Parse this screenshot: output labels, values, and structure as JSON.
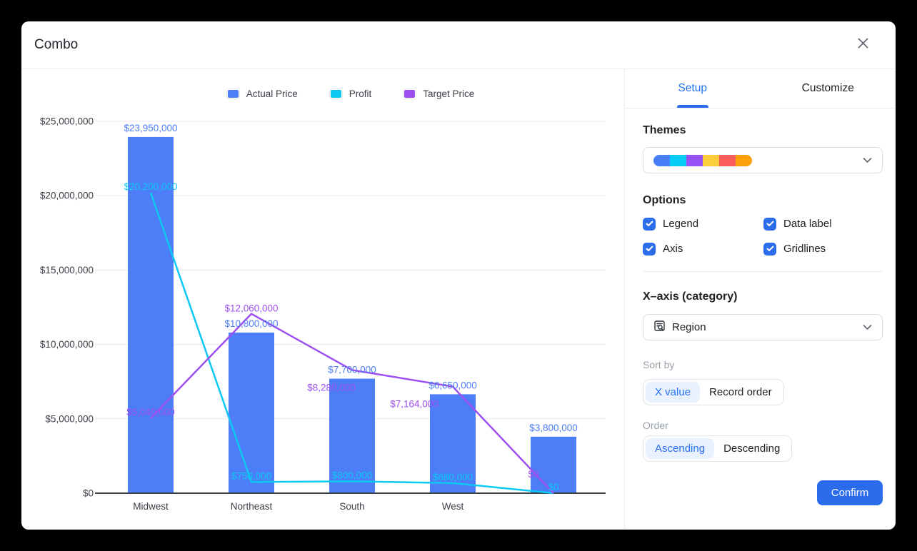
{
  "dialog": {
    "title": "Combo"
  },
  "icons": {
    "close": "x-icon",
    "chevron": "chevron-down-icon",
    "region_field": "field-search-icon"
  },
  "chart_data": {
    "type": "combo",
    "categories": [
      "Midwest",
      "Northeast",
      "South",
      "West",
      ""
    ],
    "series": [
      {
        "name": "Actual Price",
        "type": "bar",
        "color": "#4d7ef7",
        "values": [
          23950000,
          10800000,
          7700000,
          6650000,
          3800000
        ],
        "labels": [
          "$23,950,000",
          "$10,800,000",
          "$7,700,000",
          "$6,650,000",
          "$3,800,000"
        ]
      },
      {
        "name": "Profit",
        "type": "line",
        "color": "#0cc8f2",
        "values": [
          20200000,
          750000,
          800000,
          680000,
          0
        ],
        "labels": [
          "$20,200,000",
          "$750,000",
          "$800,000",
          "$680,000",
          "$0"
        ]
      },
      {
        "name": "Target Price",
        "type": "line",
        "color": "#9d4ff2",
        "values": [
          5040000,
          12060000,
          8280000,
          7164000,
          0
        ],
        "labels": [
          "$5,040,000",
          "$12,060,000",
          "$8,280,000",
          "$7,164,000",
          "$0"
        ]
      }
    ],
    "yticks": [
      0,
      5000000,
      10000000,
      15000000,
      20000000,
      25000000
    ],
    "ytick_labels": [
      "$0",
      "$5,000,000",
      "$10,000,000",
      "$15,000,000",
      "$20,000,000",
      "$25,000,000"
    ],
    "ylim": [
      0,
      25000000
    ],
    "legend_position": "top",
    "gridlines": true,
    "data_labels": true
  },
  "panel": {
    "tabs": [
      {
        "label": "Setup",
        "active": true
      },
      {
        "label": "Customize",
        "active": false
      }
    ],
    "themes": {
      "label": "Themes",
      "swatches": [
        "#4a7ef8",
        "#06cdf8",
        "#9850f8",
        "#fcce3c",
        "#fb5c5c",
        "#faa00a"
      ]
    },
    "options": {
      "label": "Options",
      "checkboxes": [
        {
          "label": "Legend",
          "checked": true
        },
        {
          "label": "Data label",
          "checked": true
        },
        {
          "label": "Axis",
          "checked": true
        },
        {
          "label": "Gridlines",
          "checked": true
        }
      ]
    },
    "xaxis": {
      "label": "X–axis (category)",
      "field": "Region"
    },
    "sort": {
      "label": "Sort by",
      "options": [
        "X value",
        "Record order"
      ],
      "selected": "X value"
    },
    "order": {
      "label": "Order",
      "options": [
        "Ascending",
        "Descending"
      ],
      "selected": "Ascending"
    },
    "confirm_label": "Confirm"
  }
}
